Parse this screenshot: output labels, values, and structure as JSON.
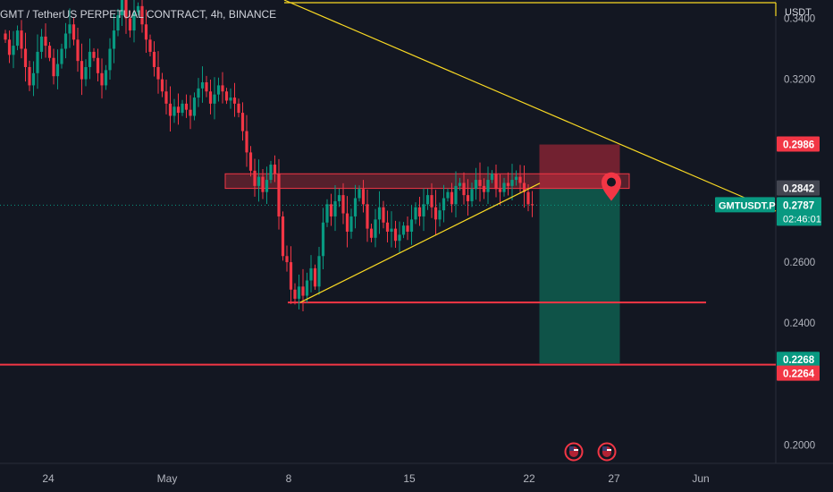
{
  "header": {
    "title": "GMT / TetherUS PERPETUAL CONTRACT, 4h, BINANCE",
    "currency": "USDT"
  },
  "chart_data": {
    "type": "candlestick",
    "symbol": "GMT / TetherUS PERPETUAL CONTRACT",
    "interval": "4h",
    "exchange": "BINANCE",
    "x_ticks": [
      "24",
      "May",
      "8",
      "15",
      "22",
      "27",
      "Jun"
    ],
    "y_ticks": [
      "0.3400",
      "0.3200",
      "0.2986",
      "0.2842",
      "0.2600",
      "0.2400",
      "0.2268",
      "0.2264",
      "0.2000"
    ],
    "ylim": [
      0.194,
      0.346
    ],
    "close_series": [
      0.333,
      0.328,
      0.331,
      0.336,
      0.33,
      0.324,
      0.318,
      0.322,
      0.329,
      0.334,
      0.331,
      0.327,
      0.321,
      0.325,
      0.33,
      0.335,
      0.338,
      0.333,
      0.326,
      0.32,
      0.324,
      0.329,
      0.327,
      0.322,
      0.318,
      0.323,
      0.33,
      0.336,
      0.341,
      0.346,
      0.34,
      0.336,
      0.342,
      0.344,
      0.338,
      0.333,
      0.329,
      0.324,
      0.32,
      0.316,
      0.312,
      0.308,
      0.311,
      0.309,
      0.312,
      0.31,
      0.308,
      0.314,
      0.317,
      0.319,
      0.316,
      0.312,
      0.315,
      0.318,
      0.316,
      0.313,
      0.314,
      0.312,
      0.309,
      0.303,
      0.296,
      0.29,
      0.285,
      0.288,
      0.283,
      0.287,
      0.292,
      0.289,
      0.275,
      0.262,
      0.26,
      0.251,
      0.248,
      0.252,
      0.249,
      0.254,
      0.258,
      0.252,
      0.262,
      0.273,
      0.279,
      0.275,
      0.28,
      0.282,
      0.276,
      0.27,
      0.275,
      0.281,
      0.284,
      0.279,
      0.271,
      0.268,
      0.274,
      0.278,
      0.273,
      0.27,
      0.271,
      0.267,
      0.269,
      0.272,
      0.27,
      0.274,
      0.278,
      0.275,
      0.279,
      0.282,
      0.278,
      0.274,
      0.277,
      0.281,
      0.283,
      0.279,
      0.285,
      0.286,
      0.282,
      0.28,
      0.284,
      0.287,
      0.285,
      0.283,
      0.287,
      0.289,
      0.284,
      0.283,
      0.286,
      0.285,
      0.287,
      0.288,
      0.286,
      0.283,
      0.279,
      0.2787
    ],
    "indicators": {
      "current_price": {
        "symbol_label": "GMTUSDT.P",
        "price": "0.2787",
        "countdown": "02:46:01",
        "color": "#089981"
      },
      "labels": [
        {
          "price": 0.2986,
          "text": "0.2986",
          "color": "#f23645"
        },
        {
          "price": 0.2842,
          "text": "0.2842",
          "color": "#434651"
        },
        {
          "price": 0.2268,
          "text": "0.2268",
          "color": "#089981"
        },
        {
          "price": 0.2264,
          "text": "0.2264",
          "color": "#f23645"
        }
      ]
    },
    "drawings": {
      "resistance_zone": {
        "top": 0.289,
        "bottom": 0.2842,
        "color": "#f23645"
      },
      "support_line": {
        "price": 0.2468,
        "color": "#f23645"
      },
      "major_support_line": {
        "price": 0.2264,
        "color": "#f23645"
      },
      "ascending_trendline": {
        "color": "#f9d923"
      },
      "descending_trendline": {
        "color": "#f9d923"
      },
      "short_position": {
        "entry": 0.2842,
        "stop": 0.2986,
        "target": 0.2268,
        "stop_color": "#b2283a",
        "target_color": "#0f5e4f"
      }
    },
    "grid": false,
    "colors": {
      "up": "#089981",
      "down": "#f23645",
      "background": "#131722"
    }
  }
}
